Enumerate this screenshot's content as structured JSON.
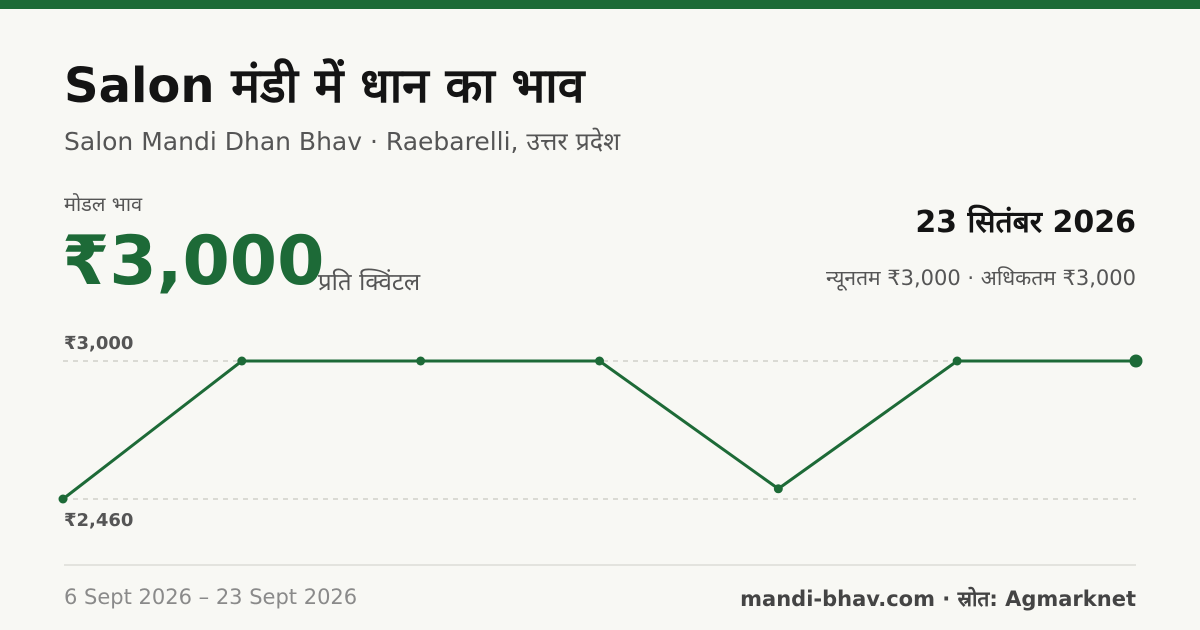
{
  "header": {
    "title": "Salon मंडी में धान का भाव",
    "subtitle": "Salon Mandi Dhan Bhav · Raebarelli, उत्तर प्रदेश",
    "modal_label": "मोडल भाव",
    "modal_price": "₹3,000",
    "unit": "प्रति क्विंटल",
    "date": "23 सितंबर 2026",
    "range": "न्यूनतम ₹3,000 · अधिकतम ₹3,000"
  },
  "footer": {
    "period": "6 Sept 2026 – 23 Sept 2026",
    "source": "mandi-bhav.com · स्रोत: Agmarknet"
  },
  "chart_data": {
    "type": "line",
    "categories": [
      null,
      null,
      null,
      null,
      null,
      null,
      null
    ],
    "values": [
      2460,
      3000,
      3000,
      3000,
      2500,
      3000,
      3000
    ],
    "color": "#1d6a37",
    "ylim": [
      2460,
      3000
    ],
    "yticks": [
      {
        "value": 3000,
        "label": "₹3,000"
      },
      {
        "value": 2460,
        "label": "₹2,460"
      }
    ],
    "grid": true
  }
}
